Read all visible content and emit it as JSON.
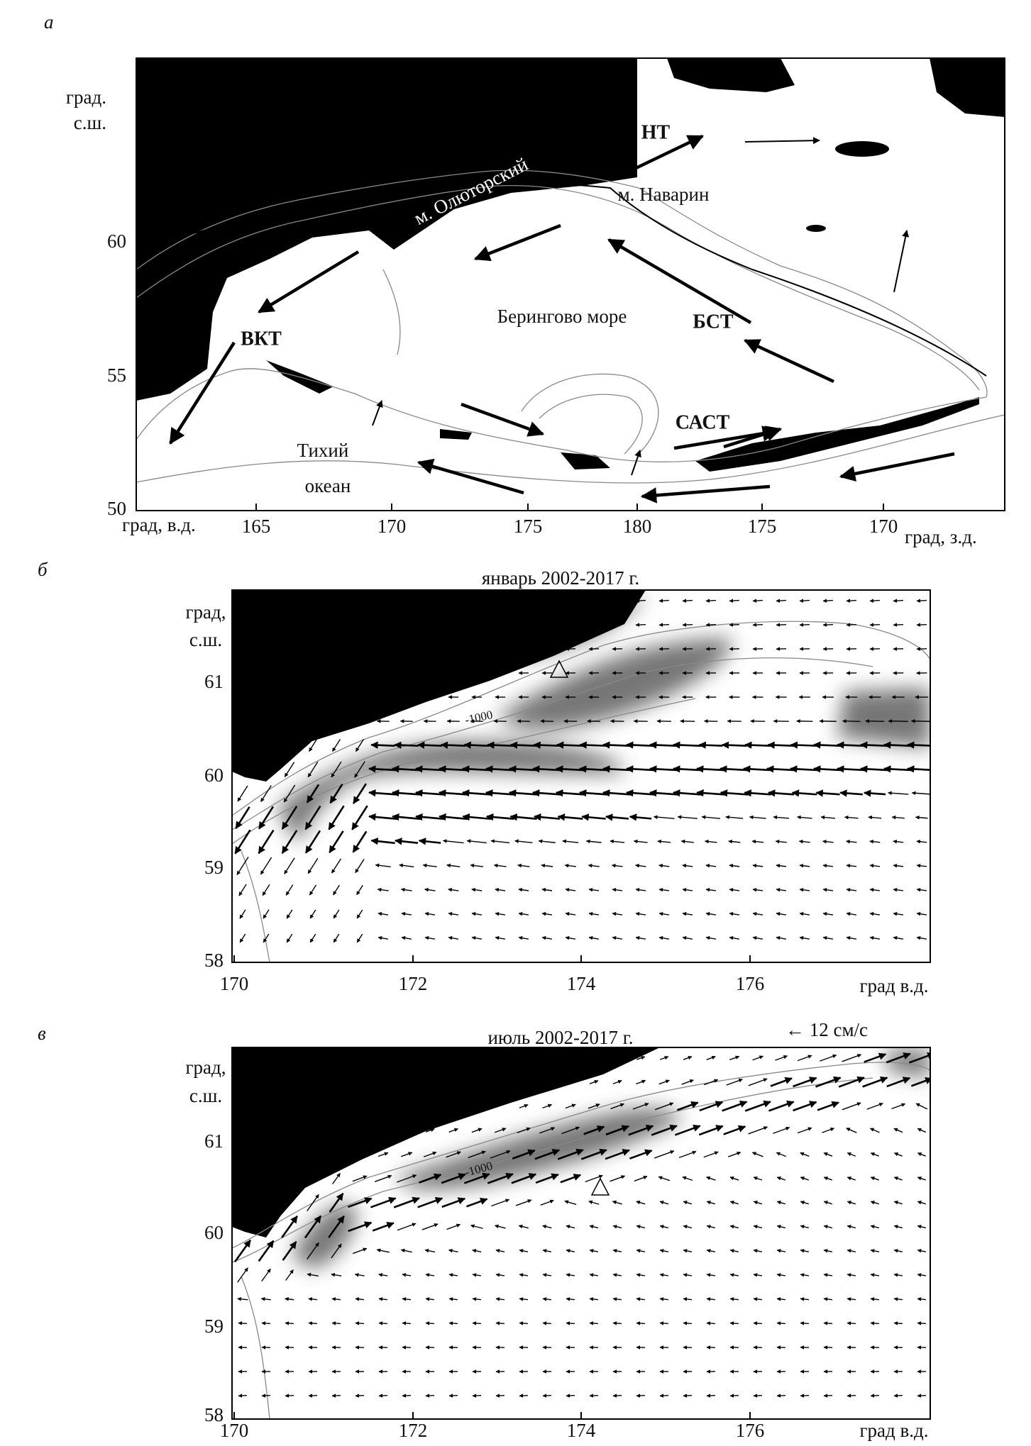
{
  "panels": [
    {
      "label": "а",
      "y_label": [
        "град.",
        "с.ш."
      ],
      "x_label_left": "град, в.д.",
      "x_label_right": "град, з.д.",
      "xticks": [
        "165",
        "170",
        "175",
        "180",
        "175",
        "170"
      ],
      "yticks": [
        "60",
        "55",
        "50"
      ],
      "annotations": [
        "НТ",
        "м. Наварин",
        "м. Олюторский",
        "Берингово море",
        "БСТ",
        "ВКТ",
        "САСТ",
        "Тихий",
        "океан"
      ]
    },
    {
      "label": "б",
      "title": "январь 2002-2017 г.",
      "y_label": [
        "град,",
        "с.ш."
      ],
      "x_label": "град в.д.",
      "xticks": [
        "170",
        "172",
        "174",
        "176"
      ],
      "yticks": [
        "61",
        "60",
        "59",
        "58"
      ],
      "contour_label": "-1000"
    },
    {
      "label": "в",
      "title": "июль 2002-2017 г.",
      "scale_label": "← 12 см/с",
      "y_label": [
        "град,",
        "с.ш."
      ],
      "x_label": "град в.д.",
      "xticks": [
        "170",
        "172",
        "174",
        "176"
      ],
      "yticks": [
        "61",
        "60",
        "59",
        "58"
      ],
      "contour_label": "-1000"
    }
  ]
}
